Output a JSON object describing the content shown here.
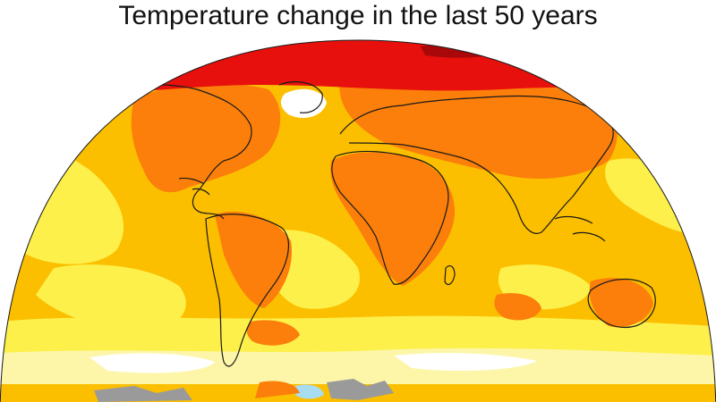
{
  "title": "Temperature change in the last 50 years",
  "colors": {
    "background": "#ffffff",
    "arctic_warming": "#e8100c",
    "strong_warming": "#fb7f0a",
    "moderate_warming": "#fbbf00",
    "light_warming": "#fdf04a",
    "slight_warming": "#fdf6a8",
    "near_zero": "#ffffff",
    "no_data": "#9a9a9a",
    "slight_cooling": "#a8dcf0",
    "coastline": "#1a1a1a"
  },
  "icons": {
    "land_outline": "coastline-outline",
    "missing_data": "grey-no-data-patch"
  }
}
